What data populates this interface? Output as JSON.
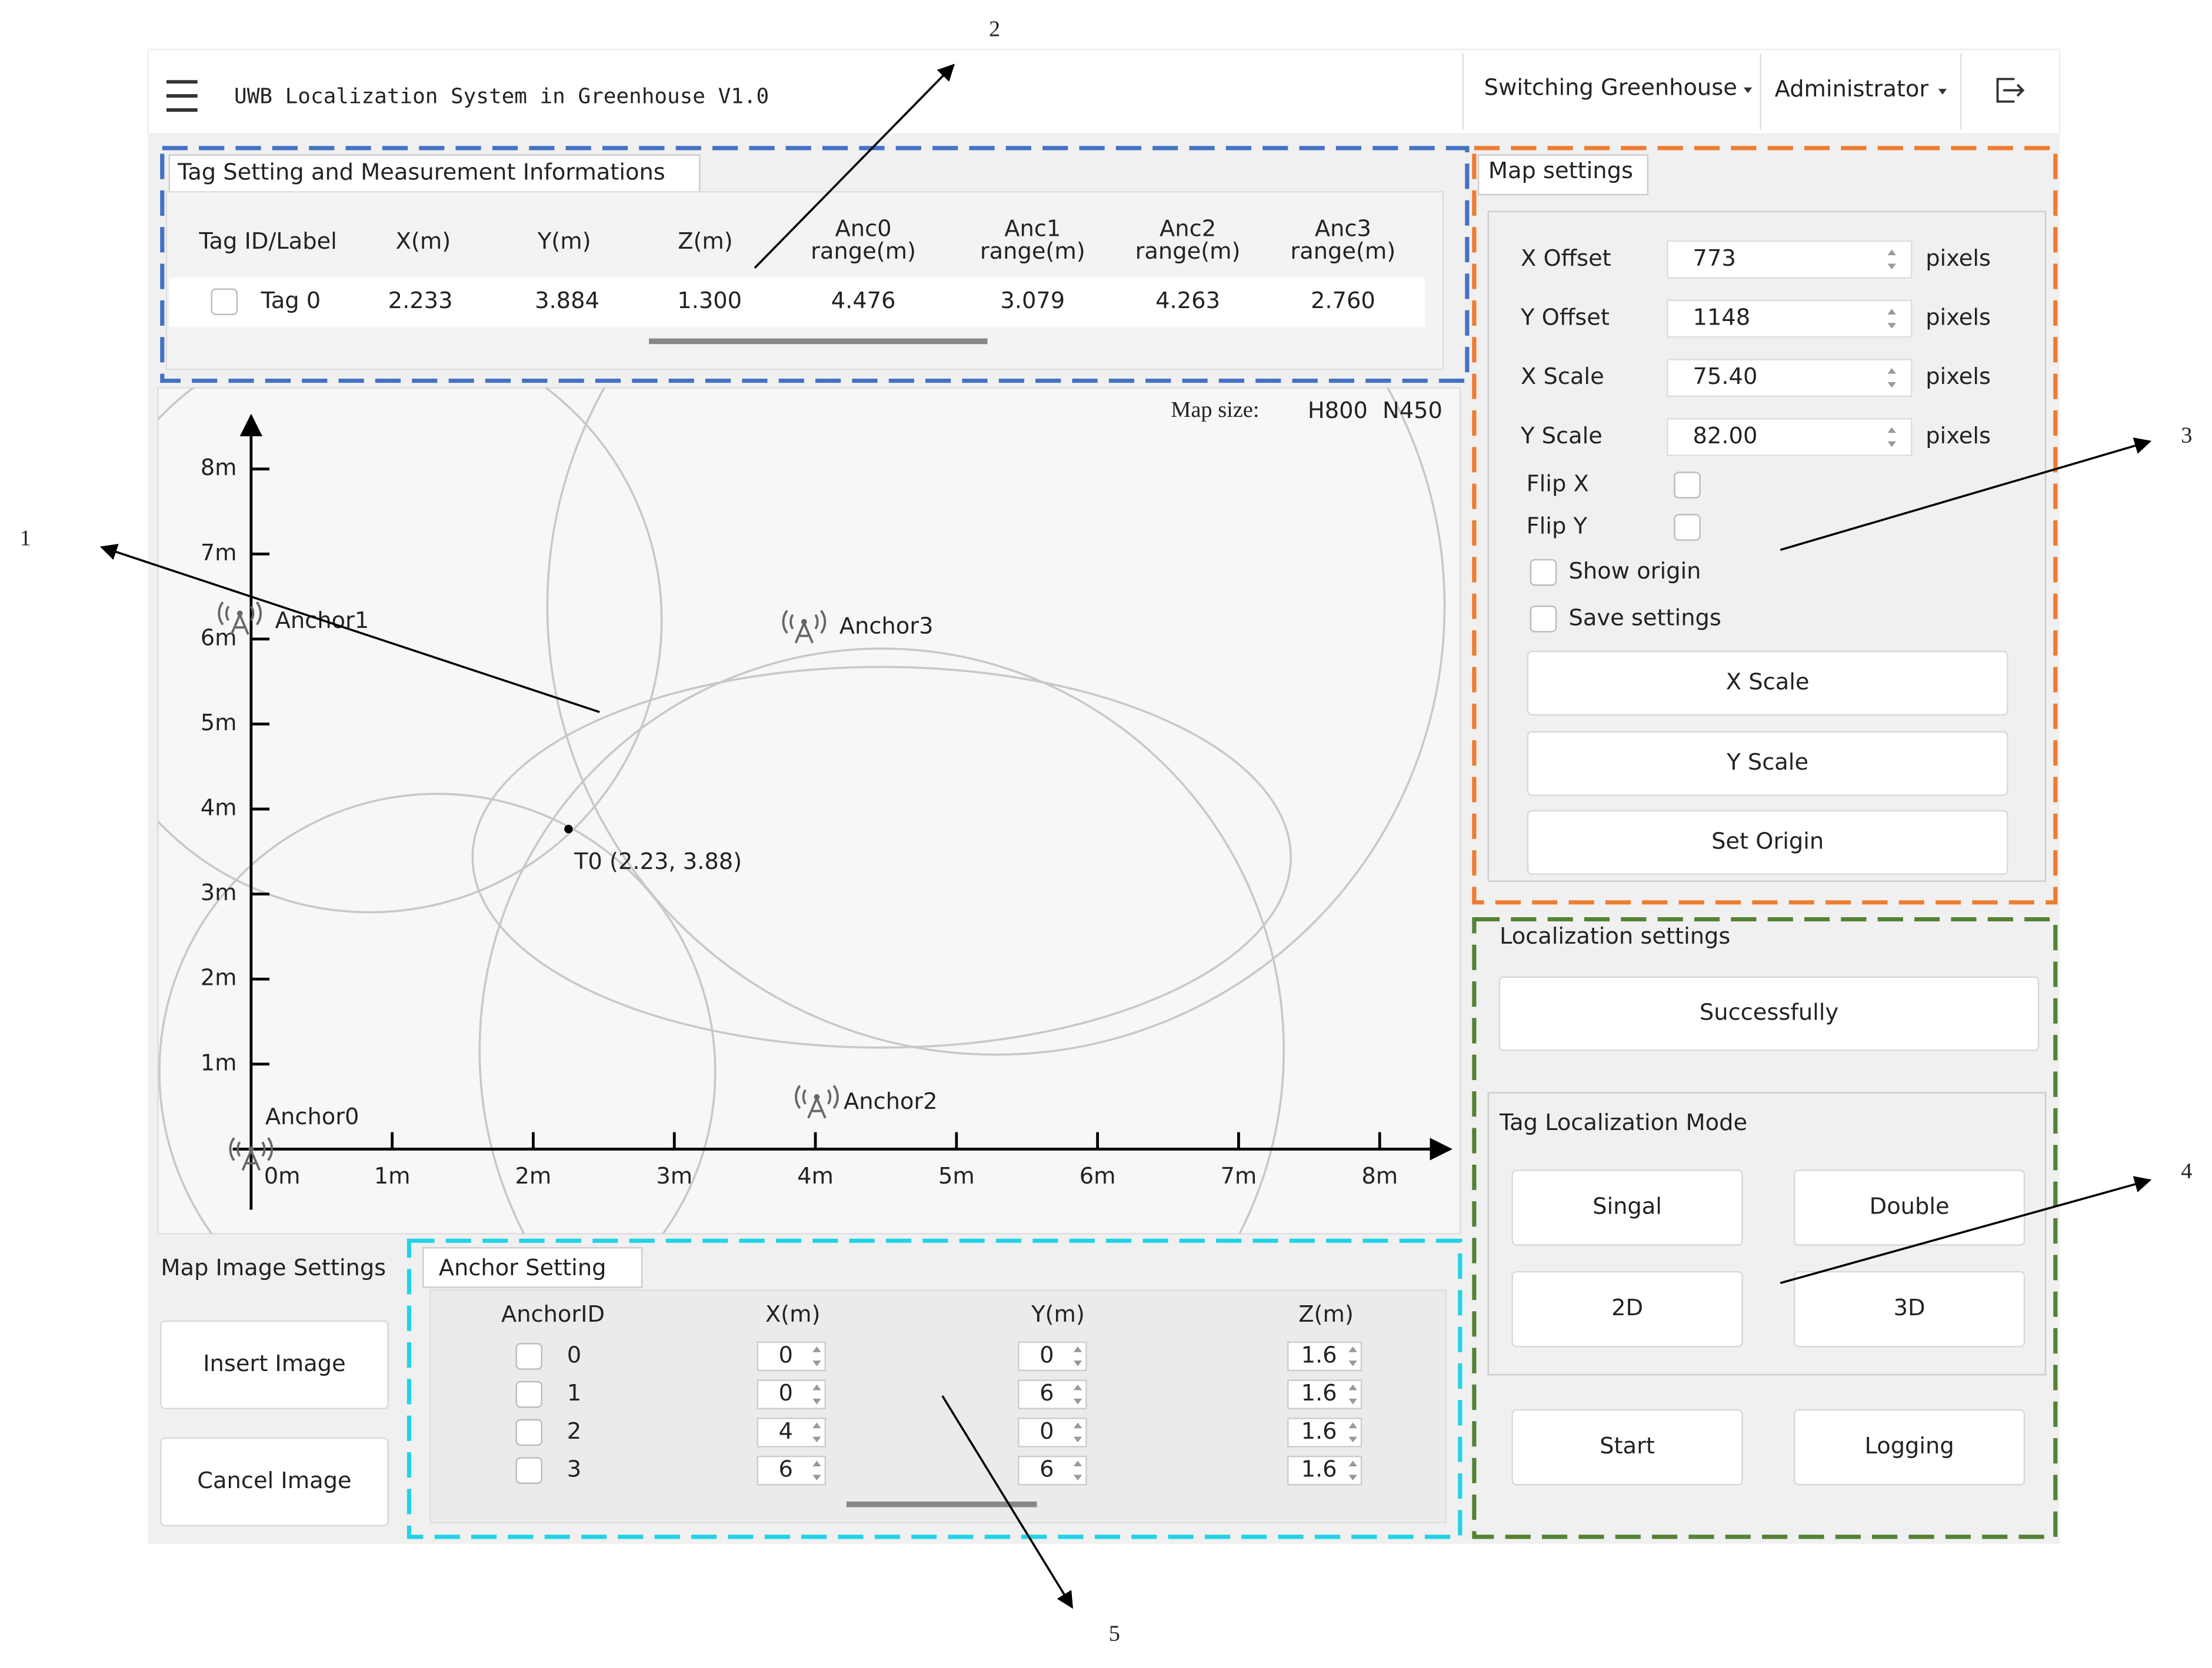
{
  "header": {
    "title": "UWB Localization System in Greenhouse V1.0",
    "menus": [
      "Switching Greenhouse",
      "Administrator"
    ]
  },
  "tag_panel": {
    "tab": "Tag Setting and Measurement Informations",
    "columns": [
      "Tag ID/Label",
      "X(m)",
      "Y(m)",
      "Z(m)",
      [
        "Anc0",
        "range(m)"
      ],
      [
        "Anc1",
        "range(m)"
      ],
      [
        "Anc2",
        "range(m)"
      ],
      [
        "Anc3",
        "range(m)"
      ]
    ],
    "rows": [
      [
        "Tag 0",
        "2.233",
        "3.884",
        "1.300",
        "4.476",
        "3.079",
        "4.263",
        "2.760"
      ]
    ]
  },
  "map": {
    "size_label": "Map size:",
    "size_values": [
      "H800",
      "N450"
    ],
    "xticks": [
      "0m",
      "1m",
      "2m",
      "3m",
      "4m",
      "5m",
      "6m",
      "7m",
      "8m"
    ],
    "yticks": [
      "1m",
      "2m",
      "3m",
      "4m",
      "5m",
      "6m",
      "7m",
      "8m"
    ],
    "anchors": [
      "Anchor0",
      "Anchor1",
      "Anchor2",
      "Anchor3"
    ],
    "tag_label": "T0 (2.23,  3.88)"
  },
  "map_settings": {
    "tab": "Map settings",
    "fields": [
      {
        "label": "X Offset",
        "value": "773",
        "unit": "pixels"
      },
      {
        "label": "Y Offset",
        "value": "1148",
        "unit": "pixels"
      },
      {
        "label": "X Scale",
        "value": "75.40",
        "unit": "pixels"
      },
      {
        "label": "Y Scale",
        "value": "82.00",
        "unit": "pixels"
      }
    ],
    "checkboxes": [
      "Flip X",
      "Flip Y",
      "Show origin",
      "Save settings"
    ],
    "buttons": [
      "X  Scale",
      "Y  Scale",
      "Set Origin"
    ]
  },
  "localization": {
    "title": "Localization settings",
    "status": "Successfully",
    "mode_title": "Tag Localization Mode",
    "mode_buttons": [
      "Singal",
      "Double",
      "2D",
      "3D"
    ],
    "buttons": [
      "Start",
      "Logging"
    ]
  },
  "map_image": {
    "title": "Map Image Settings",
    "buttons": [
      "Insert Image",
      "Cancel Image"
    ]
  },
  "anchor_panel": {
    "tab": "Anchor Setting",
    "columns": [
      "AnchorID",
      "X(m)",
      "Y(m)",
      "Z(m)"
    ],
    "rows": [
      [
        "0",
        "0",
        "0",
        "1.6"
      ],
      [
        "1",
        "0",
        "6",
        "1.6"
      ],
      [
        "2",
        "4",
        "0",
        "1.6"
      ],
      [
        "3",
        "6",
        "6",
        "1.6"
      ]
    ]
  },
  "callouts": [
    "1",
    "2",
    "3",
    "4",
    "5"
  ]
}
